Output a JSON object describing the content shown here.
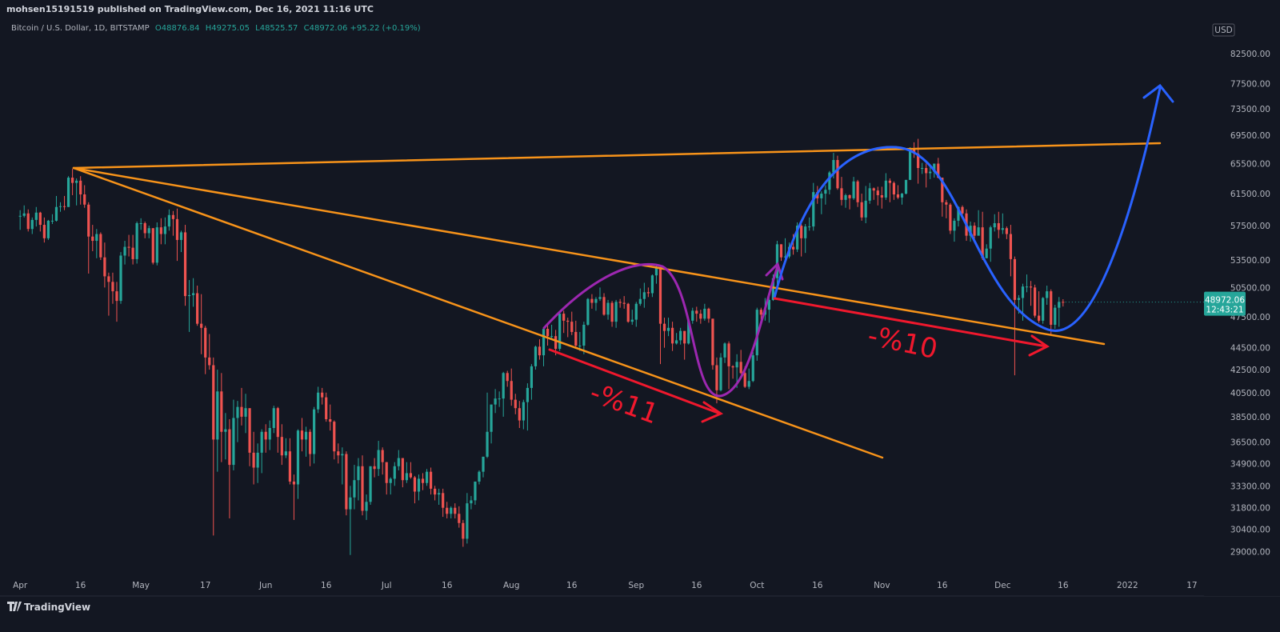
{
  "header": {
    "published": "mohsen15191519 published on TradingView.com, Dec 16, 2021 11:16 UTC",
    "symbol": "Bitcoin / U.S. Dollar, 1D, BITSTAMP",
    "ohlc": [
      {
        "label": "O",
        "value": "48876.84"
      },
      {
        "label": "H",
        "value": "49275.05"
      },
      {
        "label": "L",
        "value": "48525.57"
      },
      {
        "label": "C",
        "value": "48972.06"
      }
    ],
    "change": "+95.22 (+0.19%)"
  },
  "currency": "USD",
  "price_badge": {
    "price": "48972.06",
    "countdown": "12:43:21"
  },
  "annotations": [
    "-%11",
    "-%10"
  ],
  "footer": "TradingView",
  "chart_data": {
    "type": "candlestick",
    "log_scale": true,
    "grid": false,
    "up_color": "#26a69a",
    "down_color": "#ef5350",
    "xlim": [
      -5,
      294
    ],
    "ylim": [
      27650,
      89000
    ],
    "xticks": [
      {
        "value": 0,
        "label": "Apr"
      },
      {
        "value": 15,
        "label": "16"
      },
      {
        "value": 30,
        "label": "May"
      },
      {
        "value": 46,
        "label": "17"
      },
      {
        "value": 61,
        "label": "Jun"
      },
      {
        "value": 76,
        "label": "16"
      },
      {
        "value": 91,
        "label": "Jul"
      },
      {
        "value": 106,
        "label": "16"
      },
      {
        "value": 122,
        "label": "Aug"
      },
      {
        "value": 137,
        "label": "16"
      },
      {
        "value": 153,
        "label": "Sep"
      },
      {
        "value": 168,
        "label": "16"
      },
      {
        "value": 183,
        "label": "Oct"
      },
      {
        "value": 198,
        "label": "16"
      },
      {
        "value": 214,
        "label": "Nov"
      },
      {
        "value": 229,
        "label": "16"
      },
      {
        "value": 244,
        "label": "Dec"
      },
      {
        "value": 259,
        "label": "16"
      },
      {
        "value": 275,
        "label": "2022"
      },
      {
        "value": 291,
        "label": "17"
      }
    ],
    "yticks": [
      {
        "value": 82500,
        "label": "82500.00"
      },
      {
        "value": 77500,
        "label": "77500.00"
      },
      {
        "value": 73500,
        "label": "73500.00"
      },
      {
        "value": 69500,
        "label": "69500.00"
      },
      {
        "value": 65500,
        "label": "65500.00"
      },
      {
        "value": 61500,
        "label": "61500.00"
      },
      {
        "value": 57500,
        "label": "57500.00"
      },
      {
        "value": 53500,
        "label": "53500.00"
      },
      {
        "value": 50500,
        "label": "50500.00"
      },
      {
        "value": 47500,
        "label": "47500.00"
      },
      {
        "value": 44500,
        "label": "44500.00"
      },
      {
        "value": 42500,
        "label": "42500.00"
      },
      {
        "value": 40500,
        "label": "40500.00"
      },
      {
        "value": 38500,
        "label": "38500.00"
      },
      {
        "value": 36500,
        "label": "36500.00"
      },
      {
        "value": 34900,
        "label": "34900.00"
      },
      {
        "value": 33300,
        "label": "33300.00"
      },
      {
        "value": 31800,
        "label": "31800.00"
      },
      {
        "value": 30400,
        "label": "30400.00"
      },
      {
        "value": 29000,
        "label": "29000.00"
      }
    ],
    "candles": [
      [
        59400,
        57000,
        58700
      ],
      [
        60000,
        58500,
        59000
      ],
      [
        59500,
        56800,
        57100
      ],
      [
        58500,
        56500,
        58200
      ],
      [
        59800,
        57400,
        59100
      ],
      [
        59200,
        56800,
        57600
      ],
      [
        58500,
        55500,
        56000
      ],
      [
        58200,
        55800,
        58100
      ],
      [
        58900,
        57700,
        58100
      ],
      [
        61200,
        58000,
        59800
      ],
      [
        60400,
        59200,
        59900
      ],
      [
        61200,
        59400,
        59800
      ],
      [
        63800,
        59800,
        63600
      ],
      [
        64800,
        61300,
        62900
      ],
      [
        63500,
        60000,
        63200
      ],
      [
        63800,
        60100,
        61400
      ],
      [
        62600,
        59700,
        60100
      ],
      [
        60400,
        52000,
        56200
      ],
      [
        57600,
        54500,
        55700
      ],
      [
        57100,
        53700,
        56500
      ],
      [
        56700,
        53500,
        53800
      ],
      [
        55500,
        50500,
        51700
      ],
      [
        52100,
        47600,
        51100
      ],
      [
        52100,
        48800,
        50100
      ],
      [
        51100,
        47000,
        49100
      ],
      [
        54400,
        48800,
        54000
      ],
      [
        55700,
        53000,
        55000
      ],
      [
        56400,
        53900,
        54900
      ],
      [
        56400,
        53000,
        53600
      ],
      [
        58000,
        53100,
        57800
      ],
      [
        58400,
        57000,
        57800
      ],
      [
        58000,
        56000,
        56600
      ],
      [
        57500,
        56000,
        57200
      ],
      [
        57200,
        53000,
        53200
      ],
      [
        57900,
        52900,
        57300
      ],
      [
        58400,
        55300,
        56500
      ],
      [
        58500,
        55300,
        57400
      ],
      [
        59500,
        56900,
        58800
      ],
      [
        59300,
        56300,
        58300
      ],
      [
        59600,
        53400,
        55800
      ],
      [
        56900,
        54400,
        56700
      ],
      [
        57600,
        48600,
        49600
      ],
      [
        51300,
        46000,
        49700
      ],
      [
        51500,
        48500,
        49900
      ],
      [
        50700,
        46600,
        46800
      ],
      [
        49800,
        43900,
        46400
      ],
      [
        46600,
        42100,
        43600
      ],
      [
        45800,
        42500,
        42900
      ],
      [
        43600,
        30000,
        36700
      ],
      [
        42500,
        34300,
        40600
      ],
      [
        42200,
        35000,
        37300
      ],
      [
        38800,
        35200,
        37500
      ],
      [
        38300,
        31100,
        34800
      ],
      [
        39900,
        34400,
        38400
      ],
      [
        39800,
        36500,
        39300
      ],
      [
        40900,
        37800,
        38500
      ],
      [
        40400,
        37200,
        39200
      ],
      [
        38900,
        34700,
        35700
      ],
      [
        37300,
        33400,
        34600
      ],
      [
        36400,
        33500,
        35700
      ],
      [
        37500,
        34200,
        37300
      ],
      [
        37900,
        35700,
        36700
      ],
      [
        38200,
        35900,
        37600
      ],
      [
        39400,
        37200,
        39200
      ],
      [
        39300,
        35700,
        36900
      ],
      [
        37900,
        34800,
        35500
      ],
      [
        36800,
        35300,
        35800
      ],
      [
        36800,
        33400,
        33600
      ],
      [
        34100,
        31000,
        33400
      ],
      [
        37500,
        32400,
        37400
      ],
      [
        38400,
        35800,
        36700
      ],
      [
        37700,
        35400,
        37300
      ],
      [
        37500,
        34700,
        35600
      ],
      [
        39300,
        34900,
        39100
      ],
      [
        41000,
        38800,
        40500
      ],
      [
        40900,
        39500,
        40100
      ],
      [
        40500,
        38100,
        38300
      ],
      [
        39500,
        37400,
        38100
      ],
      [
        38200,
        35200,
        35800
      ],
      [
        36400,
        34900,
        35500
      ],
      [
        36100,
        33400,
        35600
      ],
      [
        35800,
        31300,
        31700
      ],
      [
        33300,
        28800,
        32500
      ],
      [
        34800,
        31700,
        33700
      ],
      [
        35300,
        32300,
        34700
      ],
      [
        35500,
        31300,
        31600
      ],
      [
        32700,
        31000,
        32200
      ],
      [
        34700,
        32000,
        34700
      ],
      [
        35300,
        33900,
        34500
      ],
      [
        36600,
        34000,
        35900
      ],
      [
        36100,
        34100,
        35000
      ],
      [
        35000,
        32700,
        33500
      ],
      [
        33900,
        32700,
        33800
      ],
      [
        35000,
        33300,
        34700
      ],
      [
        35900,
        34400,
        35300
      ],
      [
        35200,
        33200,
        33700
      ],
      [
        35000,
        33500,
        34200
      ],
      [
        35000,
        33800,
        33900
      ],
      [
        34000,
        32100,
        32900
      ],
      [
        34100,
        32300,
        33800
      ],
      [
        34200,
        33000,
        33500
      ],
      [
        34500,
        33300,
        34300
      ],
      [
        34600,
        32700,
        33100
      ],
      [
        33300,
        32300,
        32700
      ],
      [
        33100,
        32000,
        32800
      ],
      [
        33100,
        31200,
        31800
      ],
      [
        32200,
        31100,
        31400
      ],
      [
        31900,
        31100,
        31800
      ],
      [
        32100,
        31100,
        31400
      ],
      [
        31900,
        30500,
        30800
      ],
      [
        31000,
        29300,
        29800
      ],
      [
        32800,
        29500,
        32100
      ],
      [
        32600,
        31700,
        32300
      ],
      [
        33600,
        32000,
        33600
      ],
      [
        34400,
        33400,
        34300
      ],
      [
        35400,
        33900,
        35400
      ],
      [
        40500,
        35300,
        37300
      ],
      [
        39500,
        36400,
        39500
      ],
      [
        40800,
        38800,
        40000
      ],
      [
        40600,
        39300,
        40000
      ],
      [
        42300,
        38500,
        42200
      ],
      [
        42400,
        41000,
        41500
      ],
      [
        42600,
        39400,
        39900
      ],
      [
        40400,
        38700,
        39200
      ],
      [
        39800,
        37600,
        38200
      ],
      [
        39900,
        37500,
        39700
      ],
      [
        41300,
        37400,
        40900
      ],
      [
        43000,
        39900,
        42800
      ],
      [
        44700,
        42500,
        44600
      ],
      [
        45300,
        43400,
        43800
      ],
      [
        46400,
        42800,
        46300
      ],
      [
        46700,
        44700,
        45600
      ],
      [
        46700,
        45400,
        45600
      ],
      [
        46200,
        43800,
        44400
      ],
      [
        47900,
        44200,
        47800
      ],
      [
        48100,
        45900,
        47100
      ],
      [
        47400,
        45500,
        47000
      ],
      [
        48000,
        45700,
        46000
      ],
      [
        47100,
        44400,
        44700
      ],
      [
        46000,
        44200,
        44700
      ],
      [
        47000,
        43900,
        46700
      ],
      [
        49400,
        46600,
        49300
      ],
      [
        49800,
        48300,
        48900
      ],
      [
        49500,
        48100,
        49300
      ],
      [
        50500,
        49100,
        49500
      ],
      [
        49900,
        47600,
        47700
      ],
      [
        49200,
        47200,
        48900
      ],
      [
        49100,
        46500,
        47000
      ],
      [
        49200,
        46400,
        49000
      ],
      [
        49300,
        48400,
        48900
      ],
      [
        49600,
        48300,
        48800
      ],
      [
        48900,
        46900,
        47000
      ],
      [
        48200,
        46700,
        47200
      ],
      [
        49000,
        46500,
        48800
      ],
      [
        50400,
        48600,
        49300
      ],
      [
        51000,
        48400,
        50000
      ],
      [
        50500,
        49500,
        49900
      ],
      [
        51900,
        49500,
        51800
      ],
      [
        52900,
        50900,
        52700
      ],
      [
        52900,
        43000,
        46800
      ],
      [
        47400,
        44500,
        46100
      ],
      [
        47400,
        45600,
        46400
      ],
      [
        47000,
        44200,
        44900
      ],
      [
        45900,
        44800,
        45200
      ],
      [
        46400,
        44800,
        46100
      ],
      [
        46100,
        43400,
        44900
      ],
      [
        47300,
        44800,
        47100
      ],
      [
        48400,
        46800,
        48100
      ],
      [
        48500,
        47000,
        47800
      ],
      [
        48200,
        46800,
        47300
      ],
      [
        48800,
        47100,
        48300
      ],
      [
        48400,
        46900,
        47300
      ],
      [
        47300,
        42500,
        42900
      ],
      [
        43600,
        39600,
        40700
      ],
      [
        44000,
        40600,
        43600
      ],
      [
        45000,
        43100,
        44900
      ],
      [
        45100,
        40800,
        42800
      ],
      [
        42900,
        41700,
        42700
      ],
      [
        43900,
        40900,
        43200
      ],
      [
        44300,
        42100,
        42200
      ],
      [
        42800,
        40900,
        41000
      ],
      [
        42600,
        40800,
        41500
      ],
      [
        44100,
        41400,
        43800
      ],
      [
        48400,
        43300,
        48200
      ],
      [
        48400,
        47200,
        47700
      ],
      [
        49400,
        47100,
        48200
      ],
      [
        49500,
        46900,
        49200
      ],
      [
        51900,
        49100,
        51500
      ],
      [
        55700,
        50500,
        55300
      ],
      [
        55300,
        53400,
        53800
      ],
      [
        56000,
        53600,
        53900
      ],
      [
        55500,
        53700,
        55000
      ],
      [
        56500,
        54100,
        54700
      ],
      [
        57900,
        54400,
        57500
      ],
      [
        57700,
        53900,
        56000
      ],
      [
        57700,
        54300,
        57400
      ],
      [
        58500,
        56900,
        57400
      ],
      [
        62900,
        56900,
        61700
      ],
      [
        62500,
        60200,
        60900
      ],
      [
        61800,
        58900,
        61500
      ],
      [
        62600,
        60100,
        62000
      ],
      [
        64500,
        61400,
        64300
      ],
      [
        67000,
        63500,
        66000
      ],
      [
        66600,
        62000,
        62200
      ],
      [
        63700,
        60000,
        60700
      ],
      [
        61500,
        59700,
        61300
      ],
      [
        61400,
        59500,
        60900
      ],
      [
        63700,
        60700,
        63100
      ],
      [
        63300,
        59800,
        60400
      ],
      [
        61500,
        58100,
        58500
      ],
      [
        62500,
        57800,
        60600
      ],
      [
        62900,
        60200,
        62200
      ],
      [
        62300,
        60700,
        61900
      ],
      [
        62400,
        60000,
        61300
      ],
      [
        62400,
        59600,
        61000
      ],
      [
        64200,
        60700,
        63200
      ],
      [
        63500,
        60400,
        62900
      ],
      [
        63100,
        60700,
        61400
      ],
      [
        62600,
        60800,
        61000
      ],
      [
        61600,
        60100,
        61500
      ],
      [
        63300,
        61400,
        63300
      ],
      [
        67800,
        63300,
        67500
      ],
      [
        68500,
        66300,
        66900
      ],
      [
        69000,
        62800,
        64900
      ],
      [
        65600,
        64100,
        64900
      ],
      [
        65500,
        62300,
        64200
      ],
      [
        65000,
        63400,
        64400
      ],
      [
        65500,
        63600,
        65500
      ],
      [
        66300,
        63500,
        63600
      ],
      [
        63600,
        58600,
        60400
      ],
      [
        60700,
        58400,
        60100
      ],
      [
        60300,
        56500,
        56900
      ],
      [
        58400,
        55600,
        58100
      ],
      [
        59900,
        57400,
        59800
      ],
      [
        60000,
        58500,
        59000
      ],
      [
        59500,
        55700,
        56300
      ],
      [
        58000,
        55600,
        57500
      ],
      [
        57900,
        55900,
        56300
      ],
      [
        59400,
        56600,
        57300
      ],
      [
        59200,
        53500,
        53700
      ],
      [
        55300,
        53700,
        54800
      ],
      [
        57500,
        53300,
        57300
      ],
      [
        58900,
        56800,
        57800
      ],
      [
        59200,
        56000,
        57000
      ],
      [
        59000,
        56500,
        57200
      ],
      [
        57400,
        55900,
        56500
      ],
      [
        57600,
        51700,
        53600
      ],
      [
        53900,
        42000,
        49200
      ],
      [
        49700,
        47800,
        49400
      ],
      [
        50900,
        47100,
        50600
      ],
      [
        51900,
        50000,
        50600
      ],
      [
        51200,
        48600,
        50500
      ],
      [
        50800,
        47400,
        47600
      ],
      [
        50100,
        46900,
        47100
      ],
      [
        49500,
        46800,
        49400
      ],
      [
        50700,
        48700,
        50100
      ],
      [
        50300,
        45700,
        46700
      ],
      [
        48700,
        46300,
        48400
      ],
      [
        49500,
        46500,
        49000
      ],
      [
        49275.05,
        48525.57,
        48972.06
      ]
    ]
  }
}
